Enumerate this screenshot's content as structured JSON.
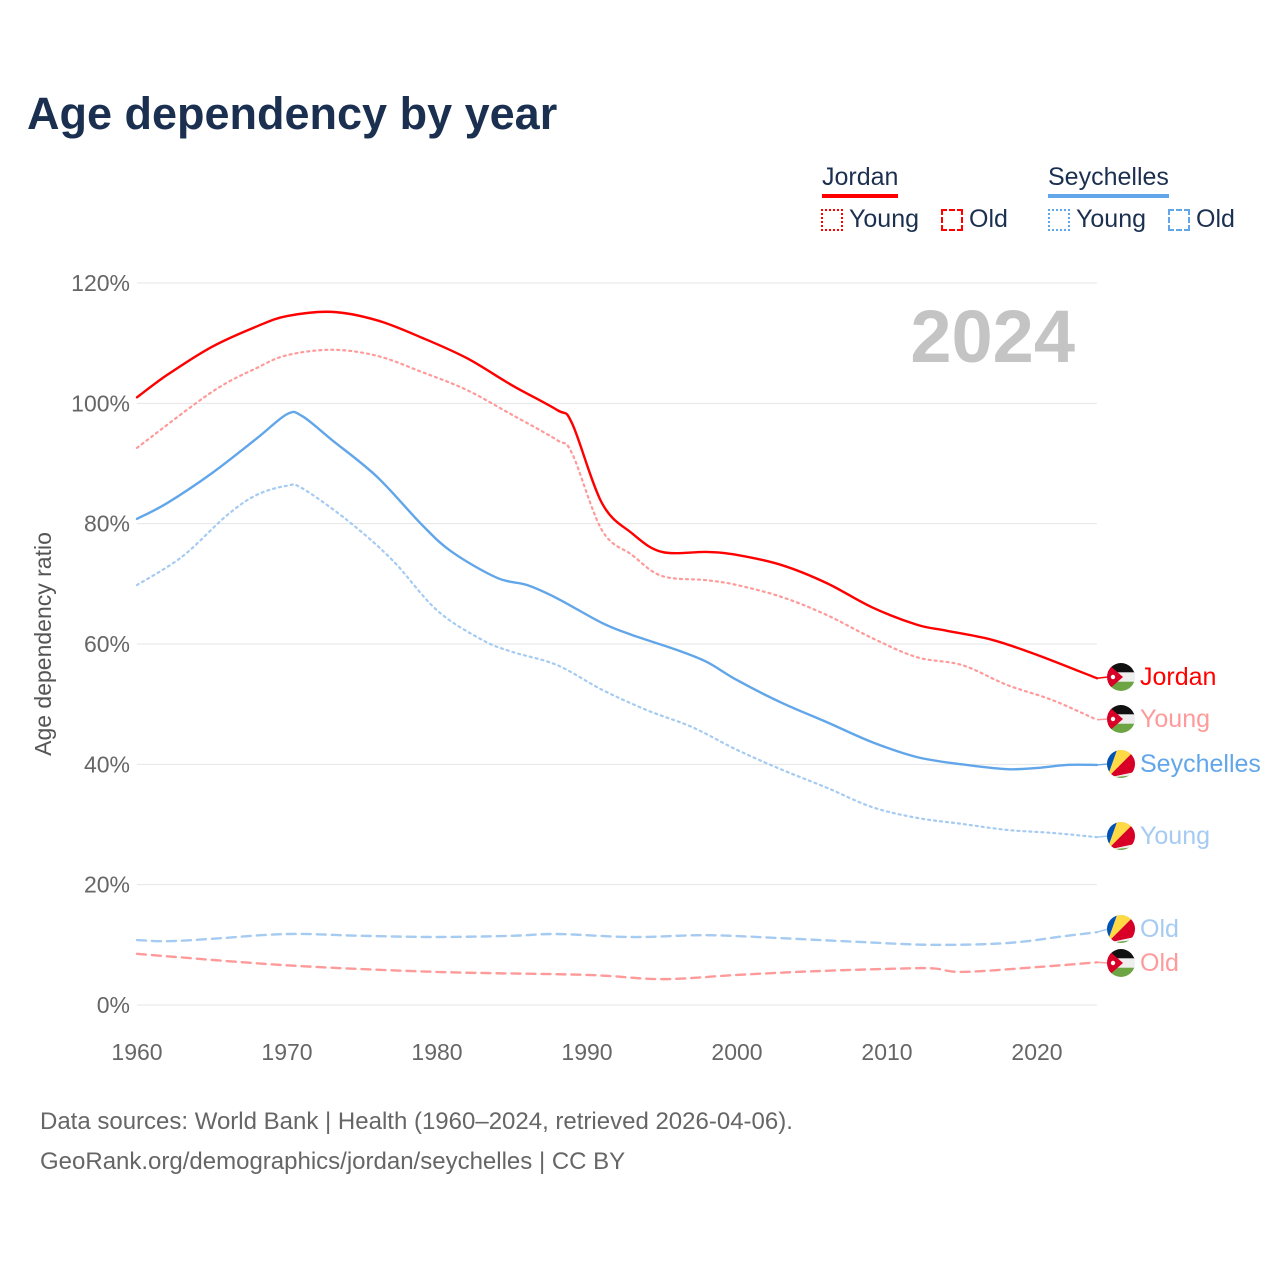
{
  "chart_data": {
    "type": "line",
    "title": "Age dependency by year",
    "ylabel": "Age dependency ratio",
    "xlabel": "",
    "xlim": [
      1960,
      2024
    ],
    "ylim": [
      0,
      120
    ],
    "x_ticks": [
      "1960",
      "1970",
      "1980",
      "1990",
      "2000",
      "2010",
      "2020"
    ],
    "y_ticks": [
      "0%",
      "20%",
      "40%",
      "60%",
      "80%",
      "100%",
      "120%"
    ],
    "grid": true,
    "year_watermark": "2024",
    "legend": {
      "placement": "top-right",
      "groups": [
        {
          "country": "Jordan",
          "items": [
            "Young",
            "Old"
          ]
        },
        {
          "country": "Seychelles",
          "items": [
            "Young",
            "Old"
          ]
        }
      ]
    },
    "series": [
      {
        "name": "Jordan",
        "label": "Jordan",
        "country": "Jordan",
        "style": "solid",
        "color": "#ff0000",
        "flag": "jordan",
        "points": [
          [
            1960,
            101.0
          ],
          [
            1962,
            104.7
          ],
          [
            1965,
            109.4
          ],
          [
            1968,
            112.8
          ],
          [
            1970,
            114.5
          ],
          [
            1973,
            115.2
          ],
          [
            1976,
            113.8
          ],
          [
            1979,
            110.9
          ],
          [
            1982,
            107.5
          ],
          [
            1985,
            103.0
          ],
          [
            1988,
            98.9
          ],
          [
            1989,
            96.7
          ],
          [
            1991,
            83.4
          ],
          [
            1993,
            78.4
          ],
          [
            1995,
            75.3
          ],
          [
            1998,
            75.3
          ],
          [
            2000,
            74.8
          ],
          [
            2003,
            73.1
          ],
          [
            2006,
            70.1
          ],
          [
            2009,
            66.1
          ],
          [
            2012,
            63.2
          ],
          [
            2014,
            62.2
          ],
          [
            2017,
            60.7
          ],
          [
            2020,
            58.2
          ],
          [
            2024,
            54.3
          ]
        ]
      },
      {
        "name": "Jordan Young",
        "label": "Young",
        "country": "Jordan",
        "style": "dotted",
        "color": "#ff9a9a",
        "flag": "jordan",
        "points": [
          [
            1960,
            92.6
          ],
          [
            1965,
            101.9
          ],
          [
            1968,
            105.9
          ],
          [
            1970,
            108.0
          ],
          [
            1973,
            108.9
          ],
          [
            1976,
            107.9
          ],
          [
            1979,
            105.2
          ],
          [
            1982,
            102.2
          ],
          [
            1985,
            98.1
          ],
          [
            1988,
            93.9
          ],
          [
            1989,
            91.7
          ],
          [
            1991,
            78.9
          ],
          [
            1993,
            74.8
          ],
          [
            1995,
            71.3
          ],
          [
            1998,
            70.6
          ],
          [
            2000,
            69.8
          ],
          [
            2003,
            67.8
          ],
          [
            2006,
            64.8
          ],
          [
            2009,
            61.0
          ],
          [
            2012,
            57.8
          ],
          [
            2015,
            56.5
          ],
          [
            2018,
            53.2
          ],
          [
            2021,
            50.7
          ],
          [
            2024,
            47.4
          ]
        ]
      },
      {
        "name": "Seychelles",
        "label": "Seychelles",
        "country": "Seychelles",
        "style": "solid",
        "color": "#62a6ea",
        "flag": "seychelles",
        "points": [
          [
            1960,
            80.8
          ],
          [
            1962,
            83.4
          ],
          [
            1965,
            88.4
          ],
          [
            1968,
            94.2
          ],
          [
            1970,
            98.2
          ],
          [
            1971,
            97.9
          ],
          [
            1973,
            93.9
          ],
          [
            1976,
            87.8
          ],
          [
            1979,
            79.8
          ],
          [
            1981,
            75.3
          ],
          [
            1984,
            71.0
          ],
          [
            1986,
            69.8
          ],
          [
            1988,
            67.6
          ],
          [
            1991,
            63.5
          ],
          [
            1993,
            61.5
          ],
          [
            1996,
            59.0
          ],
          [
            1998,
            57.0
          ],
          [
            2000,
            54.0
          ],
          [
            2003,
            50.2
          ],
          [
            2006,
            47.0
          ],
          [
            2009,
            43.7
          ],
          [
            2012,
            41.2
          ],
          [
            2015,
            40.0
          ],
          [
            2018,
            39.2
          ],
          [
            2020,
            39.4
          ],
          [
            2022,
            39.9
          ],
          [
            2024,
            39.9
          ]
        ]
      },
      {
        "name": "Seychelles Young",
        "label": "Young",
        "country": "Seychelles",
        "style": "dotted",
        "color": "#a5cbf2",
        "flag": "seychelles",
        "points": [
          [
            1960,
            69.8
          ],
          [
            1963,
            74.5
          ],
          [
            1966,
            81.4
          ],
          [
            1968,
            84.8
          ],
          [
            1970,
            86.3
          ],
          [
            1971,
            85.9
          ],
          [
            1974,
            80.6
          ],
          [
            1977,
            74.0
          ],
          [
            1980,
            65.6
          ],
          [
            1983,
            60.7
          ],
          [
            1985,
            58.7
          ],
          [
            1988,
            56.5
          ],
          [
            1991,
            52.4
          ],
          [
            1994,
            49.0
          ],
          [
            1997,
            46.2
          ],
          [
            2000,
            42.4
          ],
          [
            2003,
            39.1
          ],
          [
            2006,
            36.1
          ],
          [
            2009,
            32.9
          ],
          [
            2012,
            31.1
          ],
          [
            2015,
            30.1
          ],
          [
            2018,
            29.1
          ],
          [
            2021,
            28.6
          ],
          [
            2024,
            27.9
          ]
        ]
      },
      {
        "name": "Seychelles Old",
        "label": "Old",
        "country": "Seychelles",
        "style": "dashed",
        "color": "#a5cbf2",
        "flag": "seychelles",
        "points": [
          [
            1960,
            10.8
          ],
          [
            1962,
            10.6
          ],
          [
            1965,
            11.0
          ],
          [
            1970,
            11.8
          ],
          [
            1975,
            11.5
          ],
          [
            1980,
            11.3
          ],
          [
            1985,
            11.5
          ],
          [
            1988,
            11.8
          ],
          [
            1993,
            11.3
          ],
          [
            1998,
            11.6
          ],
          [
            2003,
            11.1
          ],
          [
            2008,
            10.5
          ],
          [
            2013,
            10.0
          ],
          [
            2018,
            10.3
          ],
          [
            2022,
            11.5
          ],
          [
            2024,
            12.1
          ]
        ]
      },
      {
        "name": "Jordan Old",
        "label": "Old",
        "country": "Jordan",
        "style": "dashed",
        "color": "#ff9a9a",
        "flag": "jordan",
        "points": [
          [
            1960,
            8.5
          ],
          [
            1970,
            6.6
          ],
          [
            1980,
            5.5
          ],
          [
            1990,
            5.0
          ],
          [
            1995,
            4.3
          ],
          [
            2000,
            5.0
          ],
          [
            2005,
            5.6
          ],
          [
            2010,
            6.0
          ],
          [
            2013,
            6.1
          ],
          [
            2015,
            5.5
          ],
          [
            2020,
            6.3
          ],
          [
            2024,
            7.1
          ]
        ]
      }
    ]
  },
  "colors": {
    "jordan": "#ff0000",
    "seychelles": "#62a6ea",
    "title": "#1b3050"
  },
  "footer": {
    "line1": "Data sources: World Bank | Health (1960–2024, retrieved 2026-04-06).",
    "line2": "GeoRank.org/demographics/jordan/seychelles | CC BY"
  }
}
